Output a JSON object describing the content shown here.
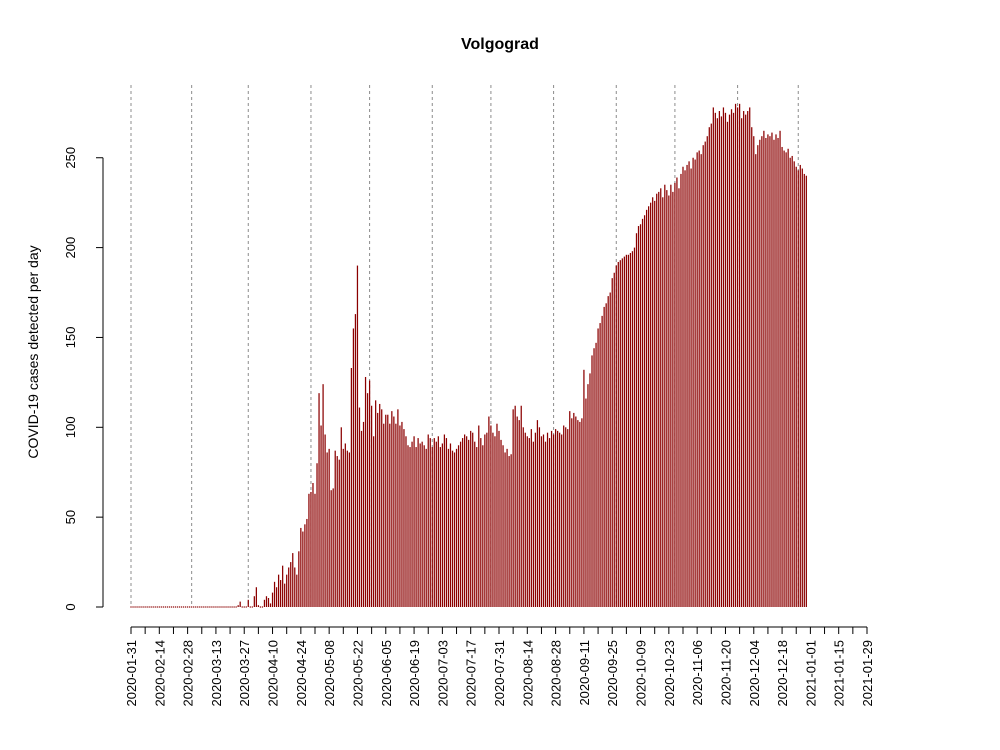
{
  "chart_data": {
    "type": "bar",
    "title": "Volgograd",
    "xlabel": "",
    "ylabel": "COVID-19 cases detected per day",
    "ylim": [
      0,
      280
    ],
    "y_ticks": [
      0,
      50,
      100,
      150,
      200,
      250
    ],
    "y_tick_labels": [
      "0",
      "50",
      "100",
      "150",
      "200",
      "250"
    ],
    "x_start_date": "2020-01-31",
    "x_end_date": "2021-01-29",
    "x_tick_labels": [
      "2020-01-31",
      "2020-02-14",
      "2020-02-28",
      "2020-03-13",
      "2020-03-27",
      "2020-04-10",
      "2020-04-24",
      "2020-05-08",
      "2020-05-22",
      "2020-06-05",
      "2020-06-19",
      "2020-07-03",
      "2020-07-17",
      "2020-07-31",
      "2020-08-14",
      "2020-08-28",
      "2020-09-11",
      "2020-09-25",
      "2020-10-09",
      "2020-10-23",
      "2020-11-06",
      "2020-11-20",
      "2020-12-04",
      "2020-12-18",
      "2021-01-01",
      "2021-01-15",
      "2021-01-29"
    ],
    "vertical_grid_dates": [
      "2020-01-31",
      "2020-03-01",
      "2020-03-29",
      "2020-04-29",
      "2020-05-28",
      "2020-06-28",
      "2020-07-27",
      "2020-08-27",
      "2020-09-27",
      "2020-10-26",
      "2020-11-26",
      "2020-12-26"
    ],
    "grid": "vertical dotted",
    "bar_color": "#8b0000",
    "values": [
      0,
      0,
      0,
      0,
      0,
      0,
      0,
      0,
      0,
      0,
      0,
      0,
      0,
      0,
      0,
      0,
      0,
      0,
      0,
      0,
      0,
      0,
      0,
      0,
      0,
      0,
      0,
      0,
      0,
      0,
      0,
      0,
      0,
      0,
      0,
      0,
      0,
      0,
      0,
      0,
      0,
      0,
      0,
      0,
      0,
      0,
      0,
      0,
      0,
      0,
      0,
      0,
      0,
      1,
      3,
      0,
      0,
      0,
      4,
      0,
      0,
      6,
      11,
      1,
      0,
      0,
      4,
      6,
      5,
      2,
      8,
      14,
      11,
      18,
      15,
      23,
      13,
      18,
      22,
      25,
      30,
      22,
      18,
      31,
      44,
      42,
      46,
      49,
      63,
      64,
      69,
      63,
      80,
      119,
      101,
      124,
      96,
      86,
      88,
      65,
      66,
      87,
      84,
      82,
      100,
      88,
      91,
      87,
      86,
      133,
      155,
      163,
      190,
      111,
      98,
      103,
      128,
      119,
      126,
      112,
      95,
      115,
      108,
      113,
      110,
      102,
      107,
      107,
      102,
      109,
      106,
      102,
      110,
      101,
      103,
      99,
      95,
      90,
      89,
      92,
      95,
      89,
      94,
      91,
      92,
      90,
      88,
      96,
      94,
      89,
      94,
      92,
      95,
      89,
      91,
      96,
      94,
      88,
      91,
      87,
      86,
      88,
      90,
      92,
      94,
      96,
      95,
      93,
      98,
      97,
      92,
      89,
      101,
      94,
      90,
      96,
      97,
      106,
      101,
      97,
      95,
      102,
      98,
      93,
      90,
      86,
      88,
      84,
      85,
      110,
      112,
      106,
      104,
      112,
      100,
      97,
      95,
      94,
      99,
      92,
      97,
      104,
      100,
      95,
      96,
      92,
      97,
      94,
      98,
      96,
      99,
      98,
      97,
      96,
      101,
      100,
      99,
      109,
      105,
      108,
      106,
      104,
      103,
      105,
      132,
      116,
      124,
      130,
      140,
      144,
      147,
      155,
      158,
      162,
      167,
      169,
      173,
      175,
      183,
      186,
      190,
      192,
      193,
      194,
      195,
      196,
      196,
      197,
      198,
      200,
      208,
      212,
      213,
      216,
      218,
      221,
      223,
      225,
      228,
      226,
      230,
      231,
      233,
      228,
      235,
      232,
      229,
      235,
      231,
      236,
      239,
      233,
      241,
      245,
      243,
      246,
      248,
      244,
      250,
      249,
      253,
      254,
      252,
      257,
      259,
      262,
      267,
      269,
      278,
      275,
      272,
      276,
      273,
      278,
      275,
      270,
      274,
      277,
      275,
      280,
      278,
      280,
      272,
      276,
      274,
      276,
      278,
      267,
      262,
      252,
      257,
      260,
      262,
      265,
      261,
      263,
      262,
      264,
      260,
      263,
      261,
      265,
      256,
      254,
      253,
      255,
      250,
      251,
      248,
      245,
      243,
      246,
      244,
      241,
      240
    ]
  }
}
